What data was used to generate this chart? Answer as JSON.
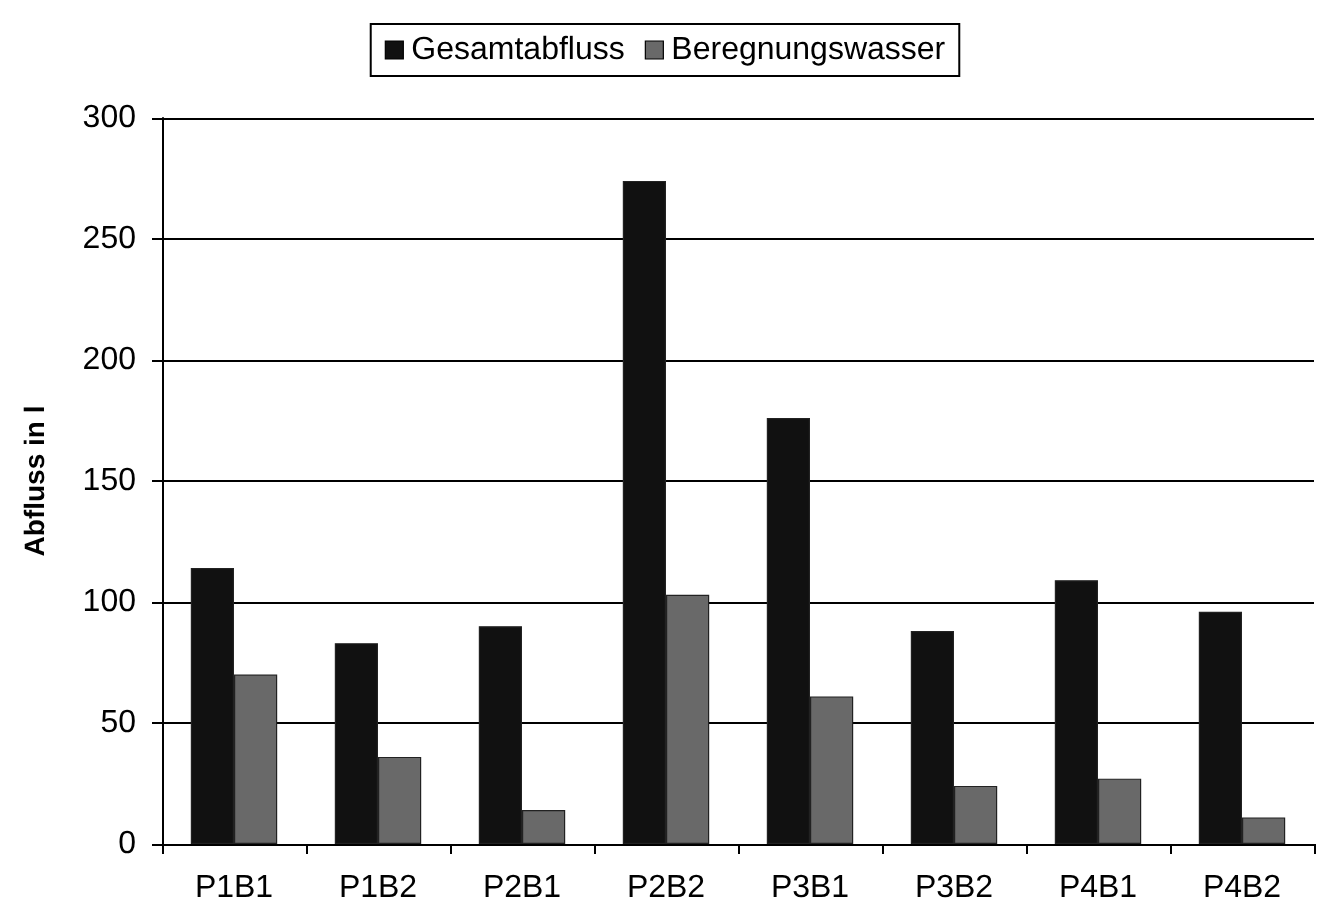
{
  "chart_data": {
    "type": "bar",
    "ylabel": "Abfluss in l",
    "categories": [
      "P1B1",
      "P1B2",
      "P2B1",
      "P2B2",
      "P3B1",
      "P3B2",
      "P4B1",
      "P4B2"
    ],
    "series": [
      {
        "name": "Gesamtabfluss",
        "color": "#111111",
        "values": [
          114,
          83,
          90,
          274,
          176,
          88,
          109,
          96
        ]
      },
      {
        "name": "Beregnungswasser",
        "color": "#696969",
        "values": [
          70,
          36,
          14,
          103,
          61,
          24,
          27,
          11
        ]
      }
    ],
    "ylim": [
      0,
      300
    ],
    "yticks": [
      0,
      50,
      100,
      150,
      200,
      250,
      300
    ],
    "grid": "y",
    "legend": "top"
  }
}
